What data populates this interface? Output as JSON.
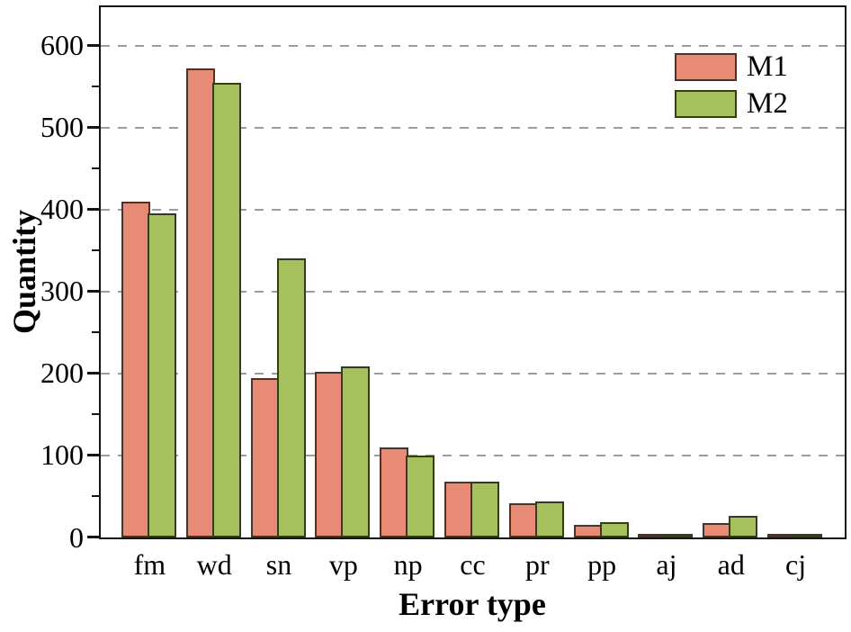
{
  "figure": {
    "background": "#ffffff",
    "axis_color": "#141414",
    "text_color": "#000000"
  },
  "chart_data": {
    "type": "bar",
    "title": "",
    "xlabel": "Error type",
    "ylabel": "Quantity",
    "categories": [
      "fm",
      "wd",
      "sn",
      "vp",
      "np",
      "cc",
      "pr",
      "pp",
      "aj",
      "ad",
      "cj"
    ],
    "series": [
      {
        "name": "M1",
        "color": "#e78a76",
        "edge_color": "#4a3328",
        "values": [
          410,
          572,
          195,
          202,
          110,
          68,
          42,
          15,
          2,
          18,
          4
        ]
      },
      {
        "name": "M2",
        "color": "#a6c05d",
        "edge_color": "#333d1b",
        "values": [
          395,
          555,
          341,
          209,
          100,
          68,
          44,
          19,
          4,
          26,
          4
        ]
      }
    ],
    "ylim": [
      0,
      646
    ],
    "yticks": [
      0,
      100,
      200,
      300,
      400,
      500,
      600
    ],
    "minor_yticks": [
      50,
      150,
      250,
      350,
      450,
      550
    ],
    "grid": {
      "axis": "y",
      "style": "dashed",
      "color": "#9c9c9c"
    },
    "legend": {
      "position": "top-right",
      "frame": false
    }
  }
}
